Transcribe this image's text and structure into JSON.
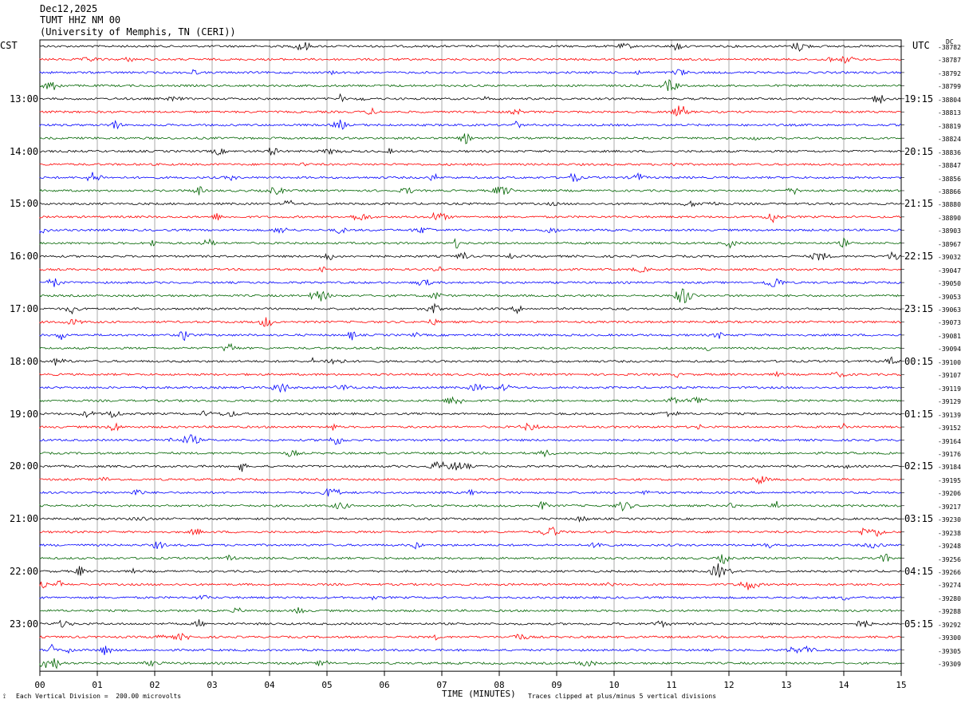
{
  "header": {
    "date": "Dec12,2025",
    "station": "TUMT HHZ NM 00",
    "institution": "(University of Memphis, TN (CERI))"
  },
  "left_label": "CST",
  "right_label": "UTC",
  "dc_label": "DC",
  "chart_data": {
    "type": "line",
    "title": "TUMT HHZ NM 00",
    "xlabel": "TIME (MINUTES)",
    "x_ticks": [
      "00",
      "01",
      "02",
      "03",
      "04",
      "05",
      "06",
      "07",
      "08",
      "09",
      "10",
      "11",
      "12",
      "13",
      "14",
      "15"
    ],
    "xlim": [
      0,
      15
    ],
    "rows_per_hour": 4,
    "trace_colors": [
      "#000000",
      "#ff0000",
      "#0000ff",
      "#006400"
    ],
    "cst_hour_labels": [
      "13:00",
      "14:00",
      "15:00",
      "16:00",
      "17:00",
      "18:00",
      "19:00",
      "20:00",
      "21:00",
      "22:00",
      "23:00"
    ],
    "utc_hour_labels": [
      "19:15",
      "20:15",
      "21:15",
      "22:15",
      "23:15",
      "00:15",
      "01:15",
      "02:15",
      "03:15",
      "04:15",
      "05:15"
    ],
    "dc_offsets": [
      "-38782",
      "-38787",
      "-38792",
      "-38799",
      "-38804",
      "-38813",
      "-38819",
      "-38824",
      "-38836",
      "-38847",
      "-38856",
      "-38866",
      "-38880",
      "-38890",
      "-38903",
      "-38967",
      "-39032",
      "-39047",
      "-39050",
      "-39053",
      "-39063",
      "-39073",
      "-39081",
      "-39094",
      "-39100",
      "-39107",
      "-39119",
      "-39129",
      "-39139",
      "-39152",
      "-39164",
      "-39176",
      "-39184",
      "-39195",
      "-39206",
      "-39217",
      "-39230",
      "-39238",
      "-39248",
      "-39256",
      "-39266",
      "-39274",
      "-39280",
      "-39288",
      "-39292",
      "-39300",
      "-39305",
      "-39309"
    ],
    "scale_note": "Each Vertical Division =  200.00 microvolts",
    "clip_note": "Traces clipped at plus/minus 5 vertical divisions"
  }
}
